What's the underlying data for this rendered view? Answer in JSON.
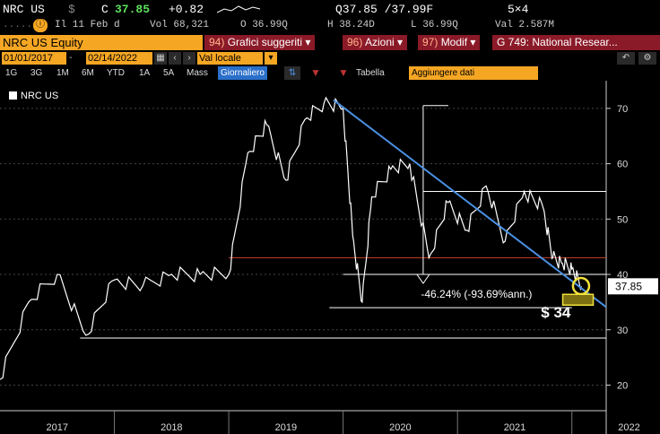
{
  "quote": {
    "ticker": "NRC US",
    "currency": "$",
    "last_label": "C",
    "last": "37.85",
    "change": "+0.82",
    "ask": "Q37.85 /37.99F",
    "size": "5×4",
    "session": "Il 11 Feb d",
    "vol": "Vol 68,321",
    "open": "O 36.99Q",
    "high": "H 38.24D",
    "low": "L 36.99Q",
    "val": "Val 2.587M"
  },
  "header": {
    "security": "NRC US Equity",
    "buttons": [
      {
        "num": "94)",
        "label": "Grafici suggeriti"
      },
      {
        "num": "96)",
        "label": "Azioni"
      },
      {
        "num": "97)",
        "label": "Modif"
      },
      {
        "num": "",
        "label": "G 749: National Resear..."
      }
    ]
  },
  "toolbar": {
    "start_date": "01/01/2017",
    "end_date": "02/14/2022",
    "currency_mode": "Val locale"
  },
  "periods": [
    "1G",
    "3G",
    "1M",
    "6M",
    "YTD",
    "1A",
    "5A",
    "Mass"
  ],
  "frequency": "Giornaliero",
  "table_label": "Tabella",
  "add_data_label": "Aggiungere dati",
  "colors": {
    "accent": "#f5a623",
    "button_red": "#8b1a28",
    "trend": "#4a90e2",
    "support_red": "#c0392b",
    "highlight": "#f2e23a"
  },
  "chart_data": {
    "type": "line",
    "series": [
      {
        "name": "NRC US"
      }
    ],
    "legend": "top-left",
    "grid": "horizontal",
    "ylim": [
      17,
      75
    ],
    "yticks": [
      20,
      30,
      40,
      50,
      60,
      70
    ],
    "xlabels": [
      "2017",
      "2018",
      "2019",
      "2020",
      "2021",
      "2022"
    ],
    "x": [
      "2017-01",
      "2017-04",
      "2017-07",
      "2017-10",
      "2018-01",
      "2018-04",
      "2018-07",
      "2018-10",
      "2019-01",
      "2019-03",
      "2019-05",
      "2019-07",
      "2019-09",
      "2019-11",
      "2020-01",
      "2020-02",
      "2020-03",
      "2020-04",
      "2020-06",
      "2020-08",
      "2020-10",
      "2020-12",
      "2021-02",
      "2021-04",
      "2021-06",
      "2021-08",
      "2021-10",
      "2021-11",
      "2021-12",
      "2022-01",
      "2022-02"
    ],
    "values": [
      21,
      35,
      40,
      29,
      39,
      38,
      40,
      40,
      40,
      62,
      67,
      57,
      68,
      71,
      70,
      47,
      35,
      54,
      59,
      60,
      43,
      53,
      48,
      56,
      46,
      55,
      52,
      43,
      42,
      41,
      37.85
    ],
    "annotations": {
      "trend_line": {
        "from": [
          "2019-12",
          71.5
        ],
        "to": [
          "2022-02",
          37.5
        ]
      },
      "support_level": 43,
      "level_40": 40,
      "level_55": 55,
      "level_34": 34,
      "level_28": 28.5,
      "decline_label": "-46.24% (-93.69%ann.)",
      "target_label": "$ 34",
      "last_price_label": "37.85"
    }
  }
}
